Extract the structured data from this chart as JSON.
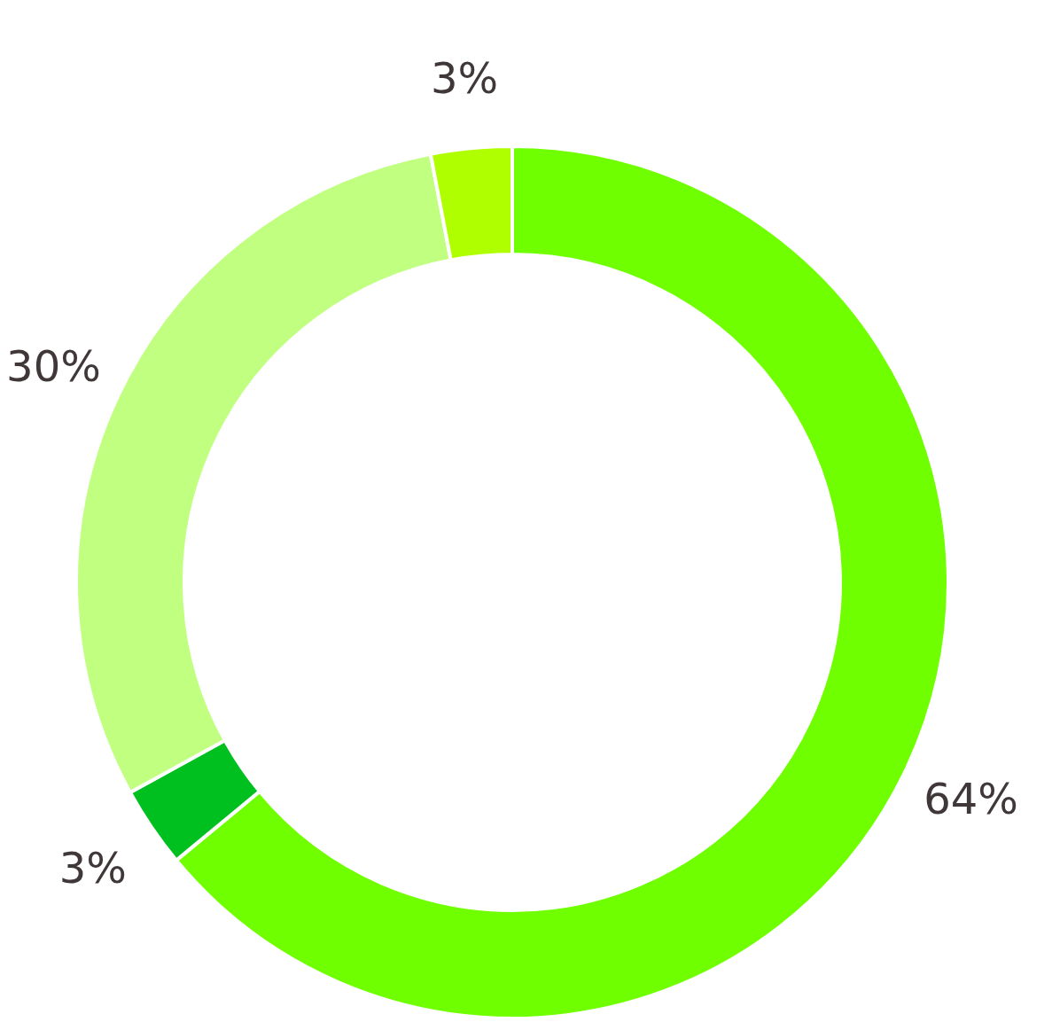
{
  "chart_data": {
    "type": "donut",
    "categories": [
      null,
      null,
      null,
      null
    ],
    "values": [
      64,
      3,
      30,
      3
    ],
    "colors": [
      "#70ff00",
      "#00c020",
      "#c0ff80",
      "#b0ff00"
    ],
    "value_labels": [
      "64%",
      "3%",
      "30%",
      "3%"
    ],
    "legend": false
  }
}
